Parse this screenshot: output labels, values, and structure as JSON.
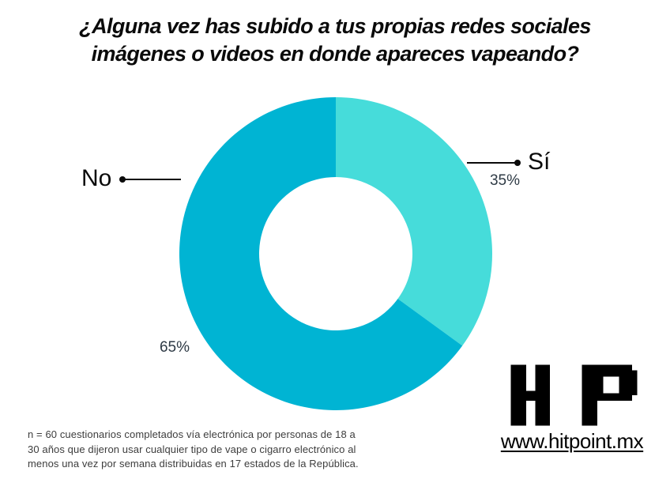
{
  "title": {
    "lines": [
      "¿Alguna vez has subido a tus propias redes sociales",
      "imágenes o videos en donde apareces vapeando?"
    ]
  },
  "chart_data": {
    "type": "pie",
    "subtype": "donut",
    "title": "¿Alguna vez has subido a tus propias redes sociales imágenes o videos en donde apareces vapeando?",
    "categories": [
      "Sí",
      "No"
    ],
    "values": [
      35,
      65
    ],
    "unit": "%",
    "start_angle_deg": 0,
    "direction": "clockwise",
    "inner_radius_ratio": 0.49,
    "legend_position": "callout-labels",
    "segments": [
      {
        "id": "si",
        "label": "Sí",
        "value": 35,
        "pct_label": "35%",
        "color": "#46DCDA"
      },
      {
        "id": "no",
        "label": "No",
        "value": 65,
        "pct_label": "65%",
        "color": "#00B4D3"
      }
    ]
  },
  "footnote": {
    "lines": [
      "n = 60 cuestionarios completados vía electrónica por personas de 18 a",
      "30 años que dijeron usar cualquier tipo de vape o cigarro electrónico al",
      "menos una vez por semana distribuidas en 17 estados de la República."
    ]
  },
  "logo": {
    "monogram": "HP",
    "website": "www.hitpoint.mx"
  }
}
